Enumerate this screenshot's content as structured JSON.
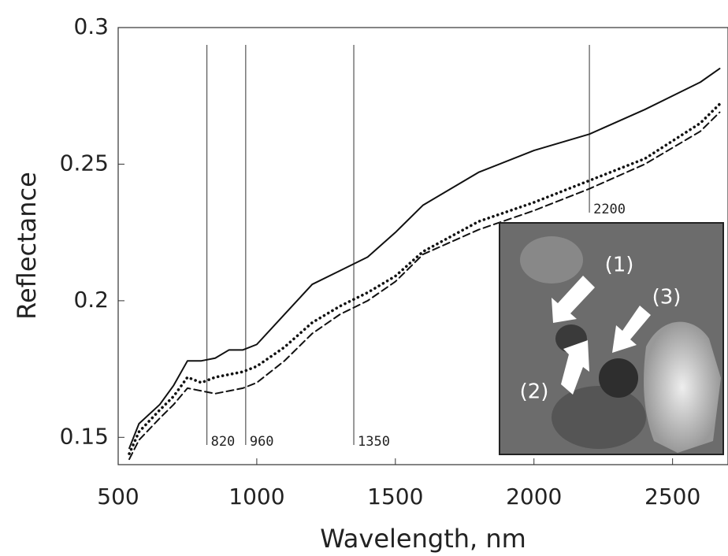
{
  "chart_data": {
    "type": "line",
    "xlabel": "Wavelength, nm",
    "ylabel": "Reflectance",
    "x": [
      540,
      575,
      650,
      700,
      750,
      800,
      850,
      900,
      950,
      1000,
      1100,
      1200,
      1300,
      1400,
      1500,
      1600,
      1800,
      2000,
      2200,
      2400,
      2600,
      2670
    ],
    "series": [
      {
        "color": "#111111",
        "style": "solid",
        "values": [
          0.146,
          0.155,
          0.162,
          0.169,
          0.178,
          0.178,
          0.179,
          0.182,
          0.182,
          0.184,
          0.195,
          0.206,
          0.211,
          0.216,
          0.225,
          0.235,
          0.247,
          0.255,
          0.261,
          0.27,
          0.28,
          0.285
        ]
      },
      {
        "color": "#111111",
        "style": "dotted",
        "values": [
          0.144,
          0.152,
          0.16,
          0.165,
          0.172,
          0.17,
          0.172,
          0.173,
          0.174,
          0.176,
          0.183,
          0.192,
          0.198,
          0.203,
          0.209,
          0.218,
          0.229,
          0.236,
          0.244,
          0.252,
          0.265,
          0.272
        ]
      },
      {
        "color": "#111111",
        "style": "dashed",
        "values": [
          0.142,
          0.149,
          0.157,
          0.162,
          0.168,
          0.167,
          0.166,
          0.167,
          0.168,
          0.17,
          0.178,
          0.188,
          0.195,
          0.2,
          0.207,
          0.217,
          0.226,
          0.233,
          0.241,
          0.25,
          0.262,
          0.269
        ]
      }
    ],
    "xlim": [
      500,
      2700
    ],
    "xticks": [
      500,
      1000,
      1500,
      2000,
      2500
    ],
    "ylim": [
      0.14,
      0.3
    ],
    "yticks": [
      0.15,
      0.2,
      0.25,
      0.3
    ],
    "vlines": [
      820,
      960,
      1350,
      2200
    ],
    "inset_labels": [
      "(1)",
      "(2)",
      "(3)"
    ]
  }
}
